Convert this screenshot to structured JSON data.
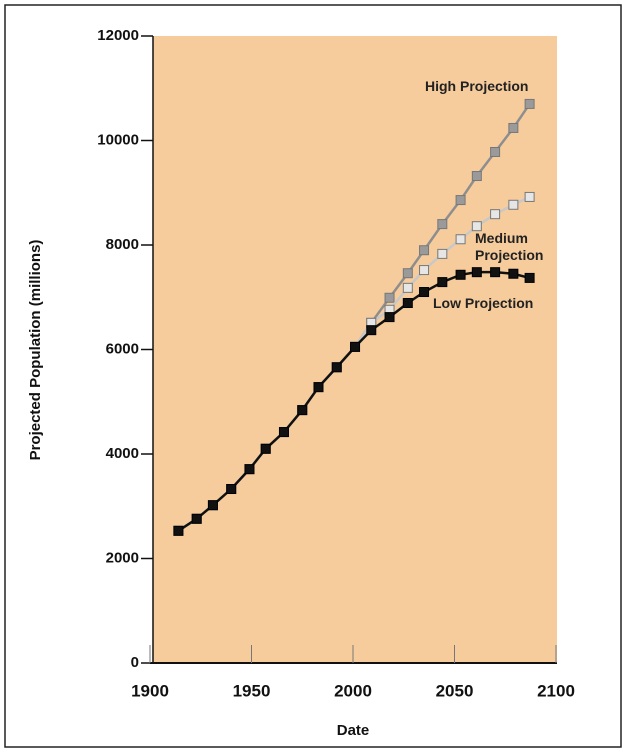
{
  "chart_data": {
    "type": "line",
    "xlabel": "Date",
    "ylabel": "Projected Population (millions)",
    "xlim": [
      1900,
      2100
    ],
    "xticks": [
      1900,
      1950,
      2000,
      2050,
      2100
    ],
    "ylim": [
      0,
      12000
    ],
    "yticks": [
      0,
      2000,
      4000,
      6000,
      8000,
      10000,
      12000
    ],
    "x": [
      1914,
      1923,
      1931,
      1940,
      1949,
      1957,
      1966,
      1975,
      1983,
      1992,
      2001,
      2009,
      2018,
      2027,
      2035,
      2044,
      2053,
      2061,
      2070,
      2079,
      2087
    ],
    "series": [
      {
        "name": "High Projection",
        "color": "#8e8e8e",
        "marker_color": "#9a9a9a",
        "values": [
          2530,
          2760,
          3020,
          3330,
          3710,
          4100,
          4420,
          4840,
          5280,
          5660,
          6050,
          6510,
          6990,
          7460,
          7900,
          8400,
          8860,
          9320,
          9780,
          10240,
          10700
        ]
      },
      {
        "name": "Medium Projection",
        "color": "#c8c8c8",
        "marker_color": "#e6e6e6",
        "values": [
          2530,
          2760,
          3020,
          3330,
          3710,
          4100,
          4420,
          4840,
          5280,
          5660,
          6050,
          6510,
          6760,
          7180,
          7520,
          7830,
          8110,
          8360,
          8590,
          8770,
          8920
        ]
      },
      {
        "name": "Low Projection",
        "color": "#111111",
        "marker_color": "#111111",
        "values": [
          2530,
          2760,
          3020,
          3330,
          3710,
          4100,
          4420,
          4840,
          5280,
          5660,
          6050,
          6370,
          6620,
          6890,
          7100,
          7290,
          7430,
          7480,
          7480,
          7450,
          7370
        ]
      }
    ]
  }
}
